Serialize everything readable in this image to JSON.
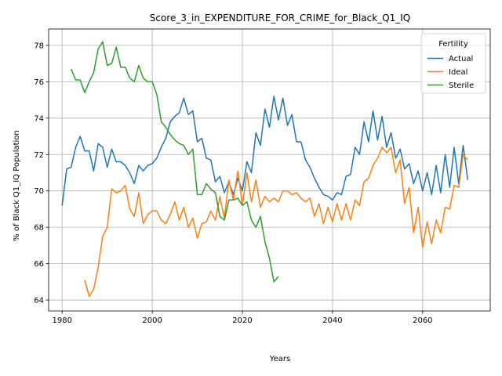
{
  "chart_data": {
    "type": "line",
    "title": "Score_3_in_EXPENDITURE_FOR_CRIME_for_Black_Q1_IQ",
    "xlabel": "Years",
    "ylabel": "% of Black Q1_IQ Population",
    "xlim": [
      1977,
      2075
    ],
    "ylim": [
      63.4,
      78.9
    ],
    "xticks": [
      1980,
      2000,
      2020,
      2040,
      2060
    ],
    "yticks": [
      64,
      66,
      68,
      70,
      72,
      74,
      76,
      78
    ],
    "grid": true,
    "legend": {
      "title": "Fertility",
      "position": "top-right"
    },
    "series": [
      {
        "name": "Actual",
        "color": "#1f77b4",
        "x": [
          1980,
          1981,
          1982,
          1983,
          1984,
          1985,
          1986,
          1987,
          1988,
          1989,
          1990,
          1991,
          1992,
          1993,
          1994,
          1995,
          1996,
          1997,
          1998,
          1999,
          2000,
          2001,
          2002,
          2003,
          2004,
          2005,
          2006,
          2007,
          2008,
          2009,
          2010,
          2011,
          2012,
          2013,
          2014,
          2015,
          2016,
          2017,
          2018,
          2019,
          2020,
          2021,
          2022,
          2023,
          2024,
          2025,
          2026,
          2027,
          2028,
          2029,
          2030,
          2031,
          2032,
          2033,
          2034,
          2035,
          2036,
          2037,
          2038,
          2039,
          2040,
          2041,
          2042,
          2043,
          2044,
          2045,
          2046,
          2047,
          2048,
          2049,
          2050,
          2051,
          2052,
          2053,
          2054,
          2055,
          2056,
          2057,
          2058,
          2059,
          2060,
          2061,
          2062,
          2063,
          2064,
          2065,
          2066,
          2067,
          2068,
          2069,
          2070
        ],
        "values": [
          69.2,
          71.2,
          71.3,
          72.4,
          73.0,
          72.2,
          72.2,
          71.1,
          72.6,
          72.4,
          71.3,
          72.3,
          71.6,
          71.6,
          71.4,
          71.0,
          70.4,
          71.4,
          71.1,
          71.4,
          71.5,
          71.8,
          72.4,
          72.9,
          73.8,
          74.1,
          74.3,
          75.1,
          74.2,
          74.4,
          72.7,
          72.9,
          71.8,
          71.7,
          70.5,
          70.8,
          69.9,
          70.5,
          69.8,
          70.7,
          70.0,
          71.6,
          71.0,
          73.2,
          72.5,
          74.5,
          73.5,
          75.2,
          73.9,
          75.1,
          73.6,
          74.2,
          72.7,
          72.7,
          71.7,
          71.3,
          70.7,
          70.2,
          69.8,
          69.7,
          69.5,
          69.9,
          69.8,
          70.8,
          70.9,
          72.4,
          72.0,
          73.8,
          72.7,
          74.4,
          72.8,
          74.1,
          72.4,
          73.2,
          71.8,
          72.3,
          71.2,
          71.5,
          70.4,
          71.1,
          70.0,
          71.0,
          69.8,
          71.4,
          69.9,
          72.0,
          70.2,
          72.4,
          70.4,
          72.5,
          70.6
        ]
      },
      {
        "name": "Ideal",
        "color": "#ff7f0e",
        "x": [
          1985,
          1986,
          1987,
          1988,
          1989,
          1990,
          1991,
          1992,
          1993,
          1994,
          1995,
          1996,
          1997,
          1998,
          1999,
          2000,
          2001,
          2002,
          2003,
          2004,
          2005,
          2006,
          2007,
          2008,
          2009,
          2010,
          2011,
          2012,
          2013,
          2014,
          2015,
          2016,
          2017,
          2018,
          2019,
          2020,
          2021,
          2022,
          2023,
          2024,
          2025,
          2026,
          2027,
          2028,
          2029,
          2030,
          2031,
          2032,
          2033,
          2034,
          2035,
          2036,
          2037,
          2038,
          2039,
          2040,
          2041,
          2042,
          2043,
          2044,
          2045,
          2046,
          2047,
          2048,
          2049,
          2050,
          2051,
          2052,
          2053,
          2054,
          2055,
          2056,
          2057,
          2058,
          2059,
          2060,
          2061,
          2062,
          2063,
          2064,
          2065,
          2066,
          2067,
          2068,
          2069,
          2070
        ],
        "values": [
          65.1,
          64.2,
          64.6,
          65.8,
          67.5,
          68.0,
          70.1,
          69.9,
          70.0,
          70.3,
          69.0,
          68.6,
          69.9,
          68.2,
          68.7,
          68.9,
          68.9,
          68.4,
          68.2,
          68.7,
          69.4,
          68.4,
          69.1,
          68.0,
          68.5,
          67.4,
          68.2,
          68.3,
          68.9,
          68.4,
          69.7,
          68.5,
          70.6,
          69.5,
          71.1,
          69.2,
          71.0,
          69.4,
          70.6,
          69.1,
          69.7,
          69.4,
          69.6,
          69.4,
          70.0,
          70.0,
          69.8,
          69.9,
          69.6,
          69.4,
          69.6,
          68.6,
          69.3,
          68.2,
          69.1,
          68.3,
          69.3,
          68.4,
          69.3,
          68.4,
          69.5,
          69.2,
          70.5,
          70.7,
          71.4,
          71.8,
          72.4,
          72.1,
          72.4,
          71.0,
          71.7,
          69.3,
          70.2,
          67.7,
          69.1,
          66.9,
          68.3,
          67.1,
          68.4,
          67.7,
          69.1,
          69.0,
          70.3,
          70.2,
          72.0,
          71.7
        ]
      },
      {
        "name": "Sterile",
        "color": "#2ca02c",
        "x": [
          1982,
          1983,
          1984,
          1985,
          1986,
          1987,
          1988,
          1989,
          1990,
          1991,
          1992,
          1993,
          1994,
          1995,
          1996,
          1997,
          1998,
          1999,
          2000,
          2001,
          2002,
          2003,
          2004,
          2005,
          2006,
          2007,
          2008,
          2009,
          2010,
          2011,
          2012,
          2013,
          2014,
          2015,
          2016,
          2017,
          2018,
          2019,
          2020,
          2021,
          2022,
          2023,
          2024,
          2025,
          2026,
          2027,
          2028
        ],
        "values": [
          76.7,
          76.1,
          76.1,
          75.4,
          76.0,
          76.5,
          77.8,
          78.2,
          76.9,
          77.0,
          77.9,
          76.8,
          76.8,
          76.2,
          76.0,
          76.9,
          76.2,
          76.0,
          76.0,
          75.3,
          73.8,
          73.5,
          73.1,
          72.8,
          72.6,
          72.5,
          72.0,
          72.3,
          69.8,
          69.8,
          70.4,
          70.1,
          69.9,
          68.6,
          68.4,
          69.5,
          69.5,
          69.6,
          69.2,
          69.4,
          68.4,
          68.0,
          68.6,
          67.2,
          66.3,
          65.0,
          65.3
        ]
      }
    ]
  }
}
